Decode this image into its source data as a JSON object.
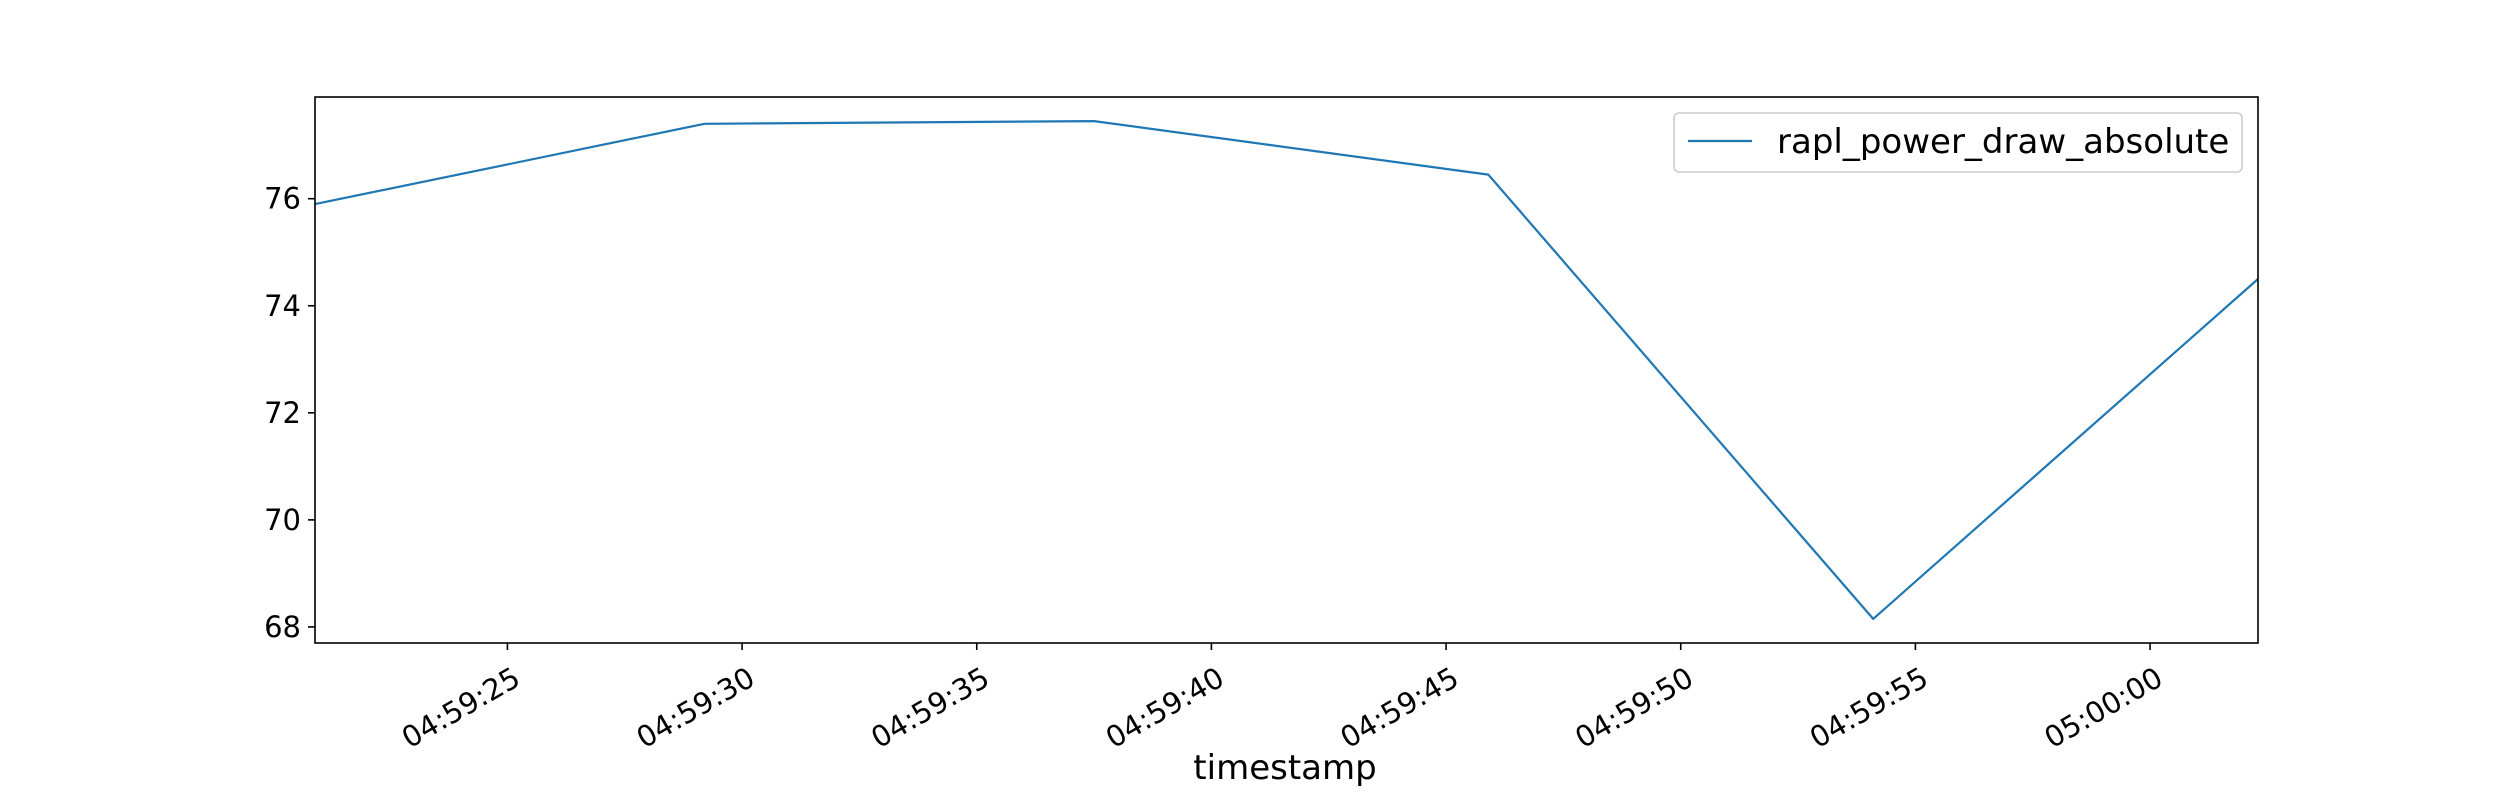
{
  "chart_data": {
    "type": "line",
    "title": "",
    "xlabel": "timestamp",
    "ylabel": "",
    "x_axis_type": "time",
    "x_tick_labels": [
      "04:59:25",
      "04:59:30",
      "04:59:35",
      "04:59:40",
      "04:59:45",
      "04:59:50",
      "04:59:55",
      "05:00:00"
    ],
    "x_tick_values": [
      "04:59:25",
      "04:59:30",
      "04:59:35",
      "04:59:40",
      "04:59:45",
      "04:59:50",
      "04:59:55",
      "05:00:00"
    ],
    "xlim": [
      "04:59:20.9",
      "05:00:02.3"
    ],
    "y_ticks": [
      68,
      70,
      72,
      74,
      76
    ],
    "ylim": [
      67.7,
      77.9
    ],
    "grid": false,
    "legend_position": "upper right",
    "series": [
      {
        "name": "rapl_power_draw_absolute",
        "color": "#1f77b4",
        "x": [
          "04:59:20.9",
          "04:59:29.2",
          "04:59:37.5",
          "04:59:45.9",
          "04:59:54.1",
          "05:00:02.3"
        ],
        "y": [
          75.9,
          77.4,
          77.45,
          76.45,
          68.15,
          74.5
        ]
      }
    ]
  }
}
